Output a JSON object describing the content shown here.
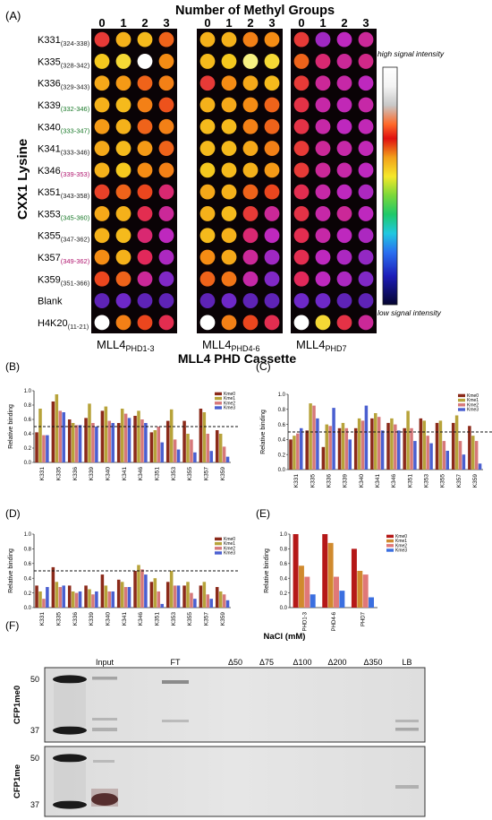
{
  "panel_letters": {
    "A": "(A)",
    "B": "(B)",
    "C": "(C)",
    "D": "(D)",
    "E": "(E)",
    "F": "(F)"
  },
  "array": {
    "top_title": "Number of Methyl Groups",
    "methyl_numbers": [
      "0",
      "1",
      "2",
      "3"
    ],
    "y_title": "CXX1 Lysine",
    "x_title": "MLL4 PHD Cassette",
    "rows": [
      {
        "main": "K331",
        "sub": "(324-338)",
        "color": "#222"
      },
      {
        "main": "K335",
        "sub": "(328-342)",
        "color": "#222"
      },
      {
        "main": "K336",
        "sub": "(329-343)",
        "color": "#222"
      },
      {
        "main": "K339",
        "sub": "(332-346)",
        "color": "#1a7a2a"
      },
      {
        "main": "K340",
        "sub": "(333-347)",
        "color": "#1a7a2a"
      },
      {
        "main": "K341",
        "sub": "(333-346)",
        "color": "#222"
      },
      {
        "main": "K346",
        "sub": "(339-353)",
        "color": "#b0156e"
      },
      {
        "main": "K351",
        "sub": "(343-358)",
        "color": "#222"
      },
      {
        "main": "K353",
        "sub": "(345-360)",
        "color": "#1a7a2a"
      },
      {
        "main": "K355",
        "sub": "(347-362)",
        "color": "#222"
      },
      {
        "main": "K357",
        "sub": "(349-362)",
        "color": "#b0156e"
      },
      {
        "main": "K359",
        "sub": "(351-366)",
        "color": "#222"
      },
      {
        "main": "Blank",
        "sub": "",
        "color": "#222"
      },
      {
        "main": "H4K20",
        "sub": "(11-21)",
        "color": "#222"
      }
    ],
    "blocks": [
      {
        "main": "MLL4",
        "sub": "PHD1-3",
        "level": [
          [
            0.45,
            0.7,
            0.72,
            0.55
          ],
          [
            0.75,
            0.8,
            1.0,
            0.62
          ],
          [
            0.68,
            0.65,
            0.55,
            0.6
          ],
          [
            0.7,
            0.72,
            0.6,
            0.52
          ],
          [
            0.65,
            0.7,
            0.55,
            0.6
          ],
          [
            0.68,
            0.72,
            0.65,
            0.55
          ],
          [
            0.7,
            0.75,
            0.62,
            0.6
          ],
          [
            0.48,
            0.55,
            0.5,
            0.35
          ],
          [
            0.68,
            0.7,
            0.4,
            0.3
          ],
          [
            0.7,
            0.72,
            0.35,
            0.25
          ],
          [
            0.62,
            0.7,
            0.38,
            0.22
          ],
          [
            0.5,
            0.55,
            0.3,
            0.15
          ],
          [
            0.1,
            0.12,
            0.1,
            0.1
          ],
          [
            1.0,
            0.6,
            0.5,
            0.4
          ]
        ]
      },
      {
        "main": "MLL4",
        "sub": "PHD4-6",
        "level": [
          [
            0.7,
            0.7,
            0.6,
            0.62
          ],
          [
            0.72,
            0.75,
            0.9,
            0.8
          ],
          [
            0.45,
            0.62,
            0.68,
            0.72
          ],
          [
            0.7,
            0.68,
            0.62,
            0.55
          ],
          [
            0.72,
            0.72,
            0.6,
            0.55
          ],
          [
            0.72,
            0.72,
            0.68,
            0.6
          ],
          [
            0.75,
            0.72,
            0.7,
            0.65
          ],
          [
            0.68,
            0.7,
            0.55,
            0.5
          ],
          [
            0.7,
            0.72,
            0.45,
            0.3
          ],
          [
            0.72,
            0.7,
            0.35,
            0.25
          ],
          [
            0.62,
            0.68,
            0.3,
            0.2
          ],
          [
            0.55,
            0.58,
            0.28,
            0.15
          ],
          [
            0.1,
            0.12,
            0.1,
            0.1
          ],
          [
            1.0,
            0.6,
            0.5,
            0.4
          ]
        ]
      },
      {
        "main": "MLL4",
        "sub": "PHD7",
        "level": [
          [
            0.45,
            0.2,
            0.25,
            0.3
          ],
          [
            0.55,
            0.35,
            0.3,
            0.32
          ],
          [
            0.45,
            0.3,
            0.28,
            0.25
          ],
          [
            0.42,
            0.28,
            0.26,
            0.28
          ],
          [
            0.42,
            0.28,
            0.25,
            0.26
          ],
          [
            0.45,
            0.3,
            0.28,
            0.26
          ],
          [
            0.45,
            0.3,
            0.28,
            0.25
          ],
          [
            0.4,
            0.28,
            0.25,
            0.22
          ],
          [
            0.42,
            0.28,
            0.3,
            0.25
          ],
          [
            0.4,
            0.28,
            0.25,
            0.22
          ],
          [
            0.4,
            0.25,
            0.22,
            0.18
          ],
          [
            0.38,
            0.25,
            0.22,
            0.15
          ],
          [
            0.12,
            0.12,
            0.1,
            0.1
          ],
          [
            1.0,
            0.8,
            0.42,
            0.3
          ]
        ]
      }
    ],
    "colorbar_high": "high signal intensity",
    "colorbar_low": "low signal intensity"
  },
  "chart_data": [
    {
      "panel": "B",
      "type": "bar",
      "ylabel": "Relative binding",
      "ylim": [
        0,
        1.0
      ],
      "yticks": [
        "0.0",
        "0.2",
        "0.4",
        "0.6",
        "0.8",
        "1.0"
      ],
      "threshold": 0.5,
      "categories": [
        "K331",
        "K335",
        "K336",
        "K339",
        "K340",
        "K341",
        "K346",
        "K351",
        "K353",
        "K355",
        "K357",
        "K359"
      ],
      "series": [
        {
          "name": "Kme0",
          "color": "#8b2a1a",
          "values": [
            0.42,
            0.85,
            0.6,
            0.62,
            0.72,
            0.55,
            0.65,
            0.42,
            0.58,
            0.58,
            0.75,
            0.45
          ]
        },
        {
          "name": "Kme1",
          "color": "#b7a33a",
          "values": [
            0.75,
            0.95,
            0.55,
            0.82,
            0.78,
            0.75,
            0.72,
            0.45,
            0.74,
            0.4,
            0.7,
            0.4
          ]
        },
        {
          "name": "Kme2",
          "color": "#d6787a",
          "values": [
            0.38,
            0.72,
            0.52,
            0.55,
            0.58,
            0.68,
            0.6,
            0.5,
            0.32,
            0.32,
            0.4,
            0.22
          ]
        },
        {
          "name": "Kme3",
          "color": "#4a5fd0",
          "values": [
            0.38,
            0.7,
            0.52,
            0.5,
            0.55,
            0.62,
            0.55,
            0.28,
            0.18,
            0.14,
            0.16,
            0.08
          ]
        }
      ]
    },
    {
      "panel": "C",
      "type": "bar",
      "ylabel": "Relative binding",
      "ylim": [
        0,
        1.0
      ],
      "yticks": [
        "0.0",
        "0.2",
        "0.4",
        "0.6",
        "0.8",
        "1.0"
      ],
      "threshold": 0.5,
      "categories": [
        "K331",
        "K335",
        "K336",
        "K339",
        "K340",
        "K341",
        "K346",
        "K351",
        "K353",
        "K355",
        "K357",
        "K359"
      ],
      "series": [
        {
          "name": "Kme0",
          "color": "#8b2a1a",
          "values": [
            0.4,
            0.52,
            0.3,
            0.55,
            0.55,
            0.68,
            0.62,
            0.55,
            0.68,
            0.62,
            0.62,
            0.58
          ]
        },
        {
          "name": "Kme1",
          "color": "#b7a33a",
          "values": [
            0.45,
            0.88,
            0.6,
            0.62,
            0.68,
            0.75,
            0.68,
            0.78,
            0.65,
            0.65,
            0.72,
            0.45
          ]
        },
        {
          "name": "Kme2",
          "color": "#d6787a",
          "values": [
            0.48,
            0.85,
            0.58,
            0.55,
            0.65,
            0.7,
            0.6,
            0.55,
            0.45,
            0.38,
            0.38,
            0.38
          ]
        },
        {
          "name": "Kme3",
          "color": "#4a5fd0",
          "values": [
            0.55,
            0.68,
            0.82,
            0.4,
            0.85,
            0.52,
            0.52,
            0.38,
            0.35,
            0.25,
            0.2,
            0.08
          ]
        }
      ]
    },
    {
      "panel": "D",
      "type": "bar",
      "ylabel": "Relative binding",
      "ylim": [
        0,
        1.0
      ],
      "yticks": [
        "0.0",
        "0.2",
        "0.4",
        "0.6",
        "0.8",
        "1.0"
      ],
      "threshold": 0.5,
      "categories": [
        "K331",
        "K335",
        "K336",
        "K339",
        "K340",
        "K341",
        "K346",
        "K351",
        "K353",
        "K355",
        "K357",
        "K359"
      ],
      "series": [
        {
          "name": "Kme0",
          "color": "#8b2a1a",
          "values": [
            0.3,
            0.55,
            0.3,
            0.3,
            0.45,
            0.38,
            0.5,
            0.35,
            0.35,
            0.3,
            0.3,
            0.28
          ]
        },
        {
          "name": "Kme1",
          "color": "#b7a33a",
          "values": [
            0.22,
            0.35,
            0.22,
            0.25,
            0.3,
            0.35,
            0.58,
            0.4,
            0.5,
            0.35,
            0.35,
            0.22
          ]
        },
        {
          "name": "Kme2",
          "color": "#d6787a",
          "values": [
            0.12,
            0.28,
            0.2,
            0.18,
            0.22,
            0.28,
            0.52,
            0.22,
            0.3,
            0.2,
            0.18,
            0.18
          ]
        },
        {
          "name": "Kme3",
          "color": "#4a5fd0",
          "values": [
            0.28,
            0.3,
            0.22,
            0.22,
            0.22,
            0.28,
            0.45,
            0.05,
            0.3,
            0.12,
            0.12,
            0.1
          ]
        }
      ]
    },
    {
      "panel": "E",
      "type": "bar",
      "ylabel": "Relative binding",
      "ylim": [
        0,
        1.0
      ],
      "yticks": [
        "0.0",
        "0.2",
        "0.4",
        "0.6",
        "0.8",
        "1.0"
      ],
      "threshold": null,
      "categories": [
        "PHD1-3",
        "PHD4-6",
        "PHD7"
      ],
      "series": [
        {
          "name": "Kme0",
          "color": "#b51818",
          "values": [
            1.0,
            1.0,
            0.8
          ]
        },
        {
          "name": "Kme1",
          "color": "#d08a2e",
          "values": [
            0.57,
            0.88,
            0.5
          ]
        },
        {
          "name": "Kme2",
          "color": "#e07878",
          "values": [
            0.42,
            0.42,
            0.45
          ]
        },
        {
          "name": "Kme3",
          "color": "#3b6fe0",
          "values": [
            0.18,
            0.23,
            0.14
          ]
        }
      ]
    }
  ],
  "gel": {
    "nacl_title": "NaCl (mM)",
    "lanes": [
      "Input",
      "FT",
      "Δ50",
      "Δ75",
      "Δ100",
      "Δ200",
      "Δ350",
      "LB"
    ],
    "markers": [
      "50",
      "37"
    ],
    "row_labels": [
      "CFP1me0",
      "CFP1me"
    ]
  }
}
